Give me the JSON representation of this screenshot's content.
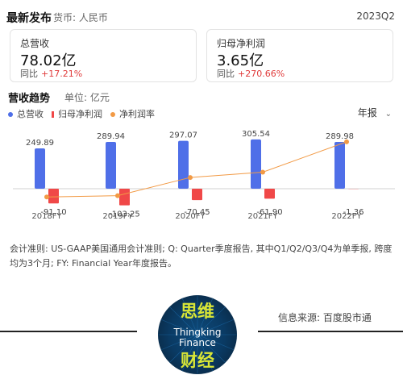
{
  "header": {
    "title": "最新发布",
    "currency": "货币: 人民币",
    "period": "2023Q2"
  },
  "cards": [
    {
      "label": "总营收",
      "value": "78.02亿",
      "change_label": "同比",
      "change": "+17.21%"
    },
    {
      "label": "归母净利润",
      "value": "3.65亿",
      "change_label": "同比",
      "change": "+270.66%"
    }
  ],
  "section": {
    "title": "营收趋势",
    "unit": "单位: 亿元",
    "period_select": "年报"
  },
  "colors": {
    "revenue": "#4f6fe8",
    "net_profit": "#f04848",
    "margin": "#f29a45",
    "change_red": "#e03a3a"
  },
  "chart_data": {
    "type": "bar",
    "categories": [
      "2018FY",
      "2019FY",
      "2020FY",
      "2021FY",
      "2022FY"
    ],
    "series": [
      {
        "name": "总营收",
        "values": [
          249.89,
          289.94,
          297.07,
          305.54,
          289.98
        ]
      },
      {
        "name": "归母净利润",
        "values": [
          -91.1,
          -103.25,
          -70.45,
          -61.9,
          -1.36
        ]
      },
      {
        "name": "净利润率",
        "type": "line",
        "values": [
          -36.46,
          -35.61,
          -23.72,
          -20.26,
          -0.47
        ]
      }
    ],
    "legend_position": "top-left"
  },
  "note": "会计准则: US-GAAP美国通用会计准则; Q: Quarter季度报告, 其中Q1/Q2/Q3/Q4为单季报, 跨度均为3个月; FY: Financial Year年度报告。",
  "footer": {
    "source": "信息来源: 百度股市通",
    "logo_text": {
      "top": "思维",
      "mid1": "Thingking",
      "mid2": "Finance",
      "bottom": "财经"
    }
  }
}
